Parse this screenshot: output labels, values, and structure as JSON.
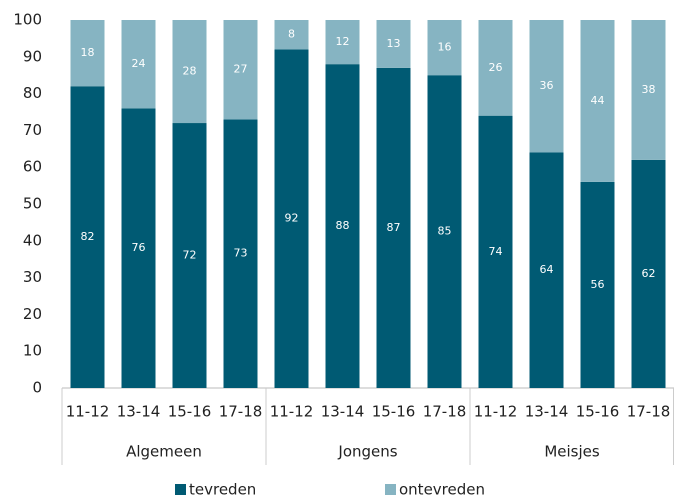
{
  "chart_data": {
    "type": "stacked-bar",
    "groups": [
      {
        "name": "Algemeen",
        "categories": [
          "11-12",
          "13-14",
          "15-16",
          "17-18"
        ]
      },
      {
        "name": "Jongens",
        "categories": [
          "11-12",
          "13-14",
          "15-16",
          "17-18"
        ]
      },
      {
        "name": "Meisjes",
        "categories": [
          "11-12",
          "13-14",
          "15-16",
          "17-18"
        ]
      }
    ],
    "series": [
      {
        "name": "tevreden",
        "color": "#005a73",
        "values": [
          82,
          76,
          72,
          73,
          92,
          88,
          87,
          85,
          74,
          64,
          56,
          62
        ]
      },
      {
        "name": "ontevreden",
        "color": "#86b4c2",
        "values": [
          18,
          24,
          28,
          27,
          8,
          12,
          13,
          16,
          26,
          36,
          44,
          38
        ]
      }
    ],
    "ylim": [
      0,
      100
    ],
    "yticks": [
      0,
      10,
      20,
      30,
      40,
      50,
      60,
      70,
      80,
      90,
      100
    ],
    "grid": false,
    "legend": "bottom"
  }
}
